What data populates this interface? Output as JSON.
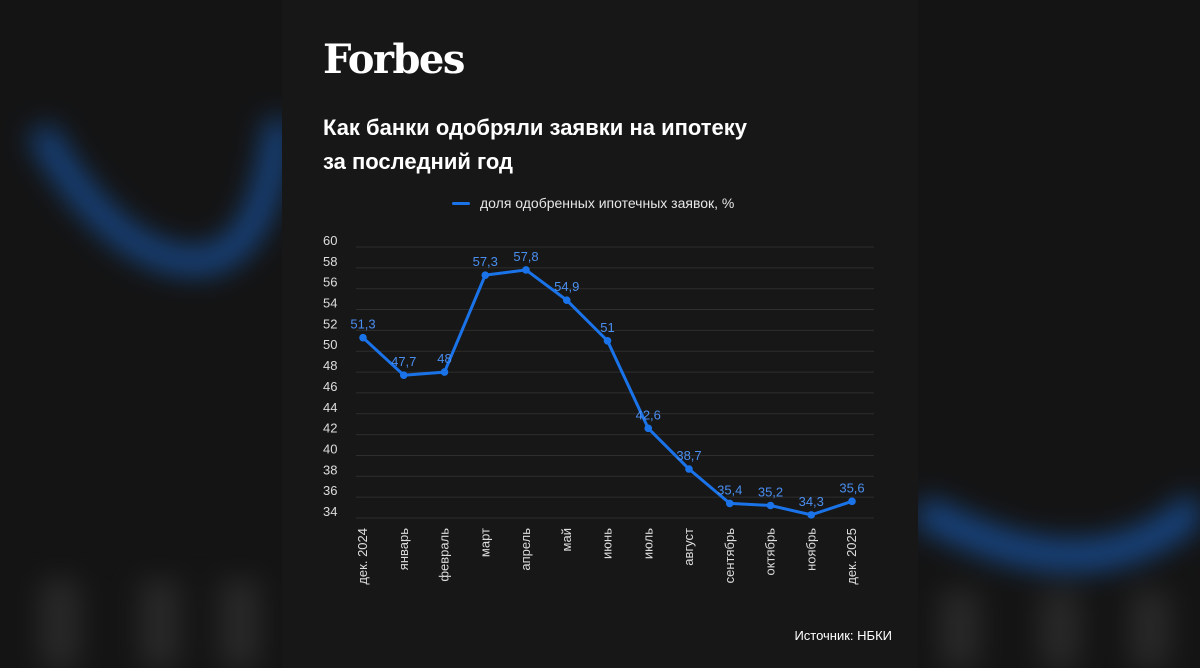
{
  "brand": {
    "logo_text": "Forbes"
  },
  "title_lines": [
    "Как банки одобряли заявки на ипотеку",
    "за последний год"
  ],
  "source": "Источник: НБКИ",
  "colors": {
    "line": "#1a73e8",
    "label": "#4a8ef0",
    "grid": "#2e2e2e",
    "axis_text": "#dddddd",
    "background": "#171717"
  },
  "chart_data": {
    "type": "line",
    "title": "Как банки одобряли заявки на ипотеку за последний год",
    "categories": [
      "дек. 2024",
      "январь",
      "февраль",
      "март",
      "апрель",
      "май",
      "июнь",
      "июль",
      "август",
      "сентябрь",
      "октябрь",
      "ноябрь",
      "дек. 2025"
    ],
    "series": [
      {
        "name": "доля одобренных ипотечных заявок, %",
        "values": [
          51.3,
          47.7,
          48,
          57.3,
          57.8,
          54.9,
          51,
          42.6,
          38.7,
          35.4,
          35.2,
          34.3,
          35.6
        ],
        "labels": [
          "51,3",
          "47,7",
          "48",
          "57,3",
          "57,8",
          "54,9",
          "51",
          "42,6",
          "38,7",
          "35,4",
          "35,2",
          "34,3",
          "35,6"
        ]
      }
    ],
    "ylim": [
      34,
      60
    ],
    "yticks": [
      60,
      58,
      56,
      54,
      52,
      50,
      48,
      46,
      44,
      42,
      40,
      38,
      36,
      34
    ],
    "grid": true,
    "legend": "top-center",
    "xlabel": "",
    "ylabel": ""
  }
}
